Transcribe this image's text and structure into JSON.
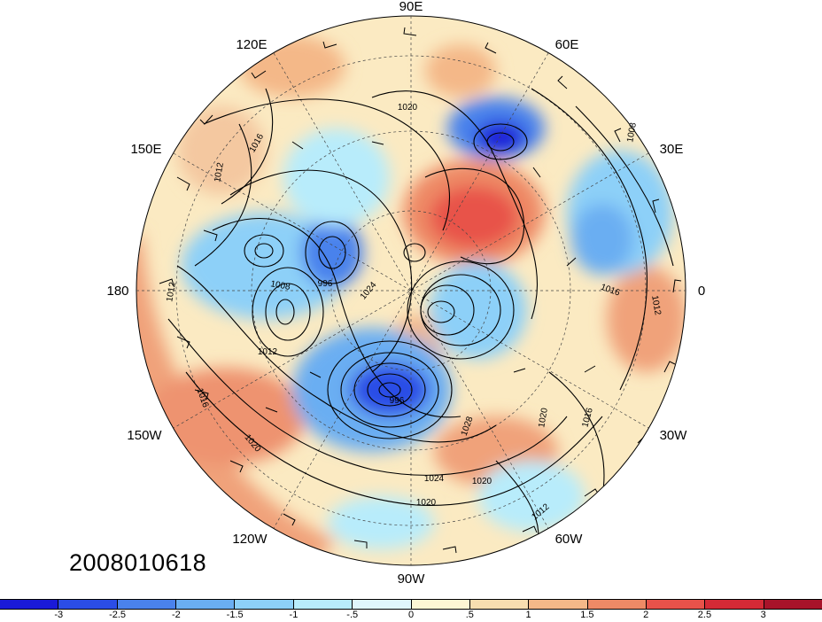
{
  "map": {
    "timestamp": "2008010618",
    "longitude_labels": [
      {
        "text": "90E",
        "name": "label-90e"
      },
      {
        "text": "60E",
        "name": "label-60e"
      },
      {
        "text": "30E",
        "name": "label-30e"
      },
      {
        "text": "0",
        "name": "label-0"
      },
      {
        "text": "30W",
        "name": "label-30w"
      },
      {
        "text": "60W",
        "name": "label-60w"
      },
      {
        "text": "90W",
        "name": "label-90w"
      },
      {
        "text": "120W",
        "name": "label-120w"
      },
      {
        "text": "150W",
        "name": "label-150w"
      },
      {
        "text": "180",
        "name": "label-180"
      },
      {
        "text": "150E",
        "name": "label-150e"
      },
      {
        "text": "120E",
        "name": "label-120e"
      }
    ],
    "isobar_labels": [
      "1020",
      "1016",
      "1012",
      "1008",
      "1008",
      "1012",
      "996",
      "1024",
      "1012",
      "1016",
      "1020",
      "996",
      "1028",
      "1020",
      "1016",
      "1024",
      "1020",
      "1020",
      "1012",
      "1016",
      "1012"
    ]
  },
  "colorbar": {
    "labels": [
      "-3",
      "-2.5",
      "-2",
      "-1.5",
      "-1",
      "-.5",
      "0",
      ".5",
      "1",
      "1.5",
      "2",
      "2.5",
      "3"
    ],
    "colors": [
      "#1a1ad8",
      "#2b4de6",
      "#4a82ec",
      "#6aaef2",
      "#8dd0f8",
      "#b8ecfb",
      "#e0f6fc",
      "#fdf6d4",
      "#f8deb0",
      "#f4b888",
      "#ee8a66",
      "#e8524a",
      "#d42a36",
      "#a8132a"
    ]
  }
}
